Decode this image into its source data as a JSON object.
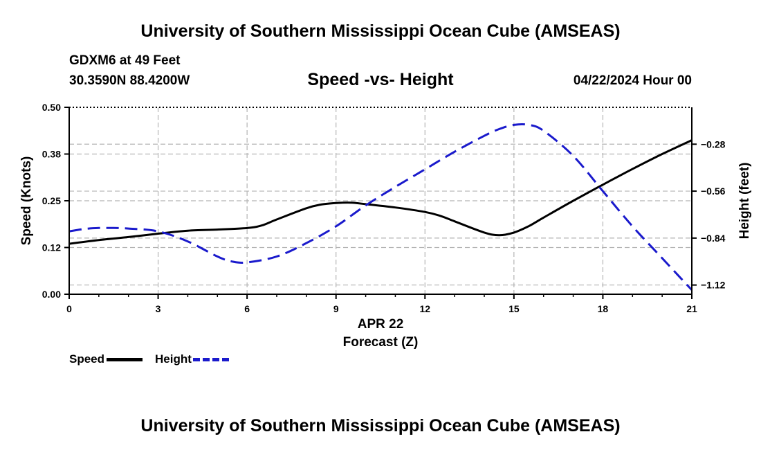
{
  "header": {
    "title": "University of Southern Mississippi Ocean Cube (AMSEAS)",
    "station": "GDXM6 at 49 Feet",
    "coords": "30.3590N  88.4200W",
    "date": "04/22/2024 Hour 00"
  },
  "footer": {
    "title": "University of Southern Mississippi Ocean Cube (AMSEAS)"
  },
  "legend": {
    "speed_label": "Speed",
    "height_label": "Height"
  },
  "colors": {
    "speed": "#000000",
    "height": "#1a1acc",
    "grid": "#b4b4b4"
  },
  "chart_data": {
    "type": "line",
    "title": "Speed -vs- Height",
    "xlabel": "Forecast (Z)",
    "xsublabel": "APR 22",
    "ylabel": "Speed (Knots)",
    "y2label": "Height (feet)",
    "xlim": [
      0,
      21
    ],
    "ylim": [
      0,
      0.5
    ],
    "y2lim": [
      -1.175,
      -0.06
    ],
    "xticks": [
      0,
      3,
      6,
      9,
      12,
      15,
      18,
      21
    ],
    "xtick_labels": [
      "0",
      "3",
      "6",
      "9",
      "12",
      "15",
      "18",
      "21"
    ],
    "yticks": [
      0,
      0.125,
      0.25,
      0.375,
      0.5
    ],
    "ytick_labels": [
      "0.00",
      "0.12",
      "0.25",
      "0.38",
      "0.50"
    ],
    "y2ticks": [
      -1.12,
      -0.84,
      -0.56,
      -0.28
    ],
    "y2tick_labels": [
      "−1.12",
      "−0.84",
      "−0.56",
      "−0.28"
    ],
    "grid": true,
    "series": [
      {
        "name": "Speed",
        "axis": "left",
        "style": "solid",
        "x": [
          0,
          1,
          2,
          3,
          4,
          5,
          6,
          6.5,
          7,
          8,
          8.5,
          9,
          9.5,
          10,
          11,
          12,
          12.5,
          13,
          14,
          14.5,
          15,
          15.5,
          16,
          17,
          18,
          19,
          20,
          21
        ],
        "values": [
          0.135,
          0.145,
          0.153,
          0.162,
          0.17,
          0.173,
          0.177,
          0.184,
          0.2,
          0.23,
          0.24,
          0.244,
          0.245,
          0.241,
          0.232,
          0.22,
          0.21,
          0.195,
          0.165,
          0.158,
          0.165,
          0.182,
          0.205,
          0.25,
          0.293,
          0.335,
          0.375,
          0.412
        ]
      },
      {
        "name": "Height",
        "axis": "right",
        "style": "dashed",
        "x": [
          0,
          0.5,
          1,
          1.5,
          2,
          3,
          4,
          5,
          5.5,
          6,
          7,
          8,
          9,
          10,
          11,
          12,
          13,
          14,
          14.5,
          15,
          15.5,
          16,
          17,
          18,
          19,
          20,
          21
        ],
        "values": [
          -0.8,
          -0.786,
          -0.78,
          -0.78,
          -0.783,
          -0.8,
          -0.86,
          -0.95,
          -0.98,
          -0.985,
          -0.95,
          -0.87,
          -0.77,
          -0.645,
          -0.535,
          -0.43,
          -0.325,
          -0.23,
          -0.19,
          -0.165,
          -0.165,
          -0.2,
          -0.35,
          -0.56,
          -0.77,
          -0.96,
          -1.15
        ]
      }
    ]
  }
}
